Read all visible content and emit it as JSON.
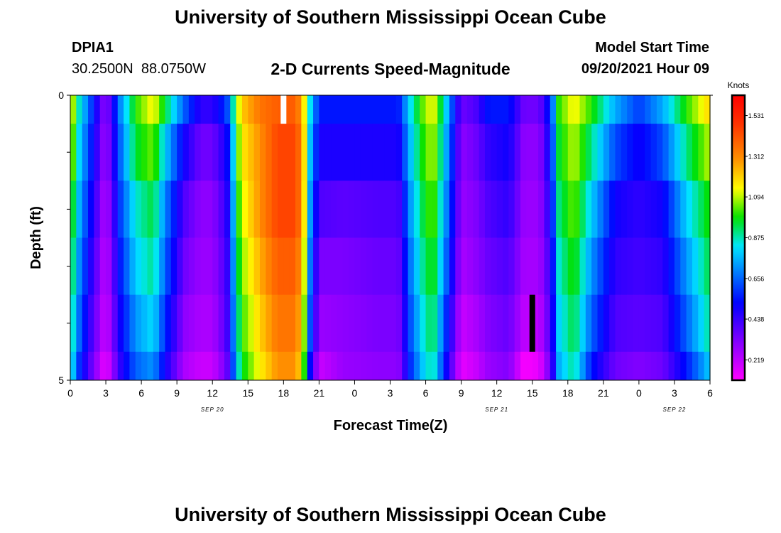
{
  "header": {
    "title": "University of Southern Mississippi Ocean Cube",
    "station_id": "DPIA1",
    "coordinates": "30.2500N  88.0750W",
    "product": "2-D Currents Speed-Magnitude",
    "model_start_label": "Model Start Time",
    "model_start_value": "09/20/2021 Hour 09"
  },
  "footer": {
    "title": "University of Southern Mississippi Ocean Cube"
  },
  "chart_data": {
    "type": "heatmap",
    "title": "2-D Currents Speed-Magnitude",
    "xlabel": "Forecast Time(Z)",
    "ylabel": "Depth (ft)",
    "x_hours_since_sep20_00z": [
      0,
      54
    ],
    "ylim": [
      0,
      5
    ],
    "y_ticks": [
      "0",
      "5"
    ],
    "x_tick_labels": [
      "0",
      "3",
      "6",
      "9",
      "12",
      "15",
      "18",
      "21",
      "0",
      "3",
      "6",
      "9",
      "12",
      "15",
      "18",
      "21",
      "0",
      "3",
      "6"
    ],
    "date_labels": [
      {
        "text": "SEP 20",
        "hour": 12
      },
      {
        "text": "SEP 21",
        "hour": 36
      },
      {
        "text": "SEP 22",
        "hour": 51
      }
    ],
    "colorbar": {
      "title": "Knots",
      "range": [
        0.11,
        1.64
      ],
      "tick_values": [
        0.219,
        0.438,
        0.656,
        0.875,
        1.094,
        1.312,
        1.531
      ],
      "tick_labels": [
        "0.219",
        "0.438",
        "0.656",
        "0.875",
        "1.094",
        "1.312",
        "1.531"
      ]
    },
    "markers": [
      {
        "name": "white-marker",
        "hour": 18,
        "depth_row": 0,
        "color": "#ffffff"
      },
      {
        "name": "black-marker",
        "hour": 39,
        "depth_row": 4,
        "color": "#000000"
      }
    ],
    "time_keyframes_hours": [
      0,
      0.6,
      1.6,
      3,
      4.2,
      5.5,
      7,
      8,
      9.6,
      11,
      12,
      13.2,
      14.4,
      16,
      17.5,
      19,
      19.6,
      20.2,
      21,
      23,
      26,
      27.7,
      28.8,
      29.8,
      30.6,
      31.6,
      33,
      34.2,
      35.3,
      37,
      38.3,
      39.6,
      40.6,
      41.2,
      42.5,
      44,
      46,
      48,
      50,
      52,
      54
    ],
    "depth_rows": [
      {
        "depth_ft": "0-0.5",
        "speed_knots": [
          1.2,
          0.9,
          0.65,
          0.27,
          0.7,
          1.0,
          1.15,
          0.95,
          0.65,
          0.45,
          0.45,
          0.6,
          1.2,
          1.35,
          1.4,
          1.4,
          1.25,
          0.85,
          0.55,
          0.55,
          0.55,
          0.55,
          0.85,
          1.05,
          1.15,
          0.85,
          0.35,
          0.4,
          0.55,
          0.55,
          0.35,
          0.35,
          0.6,
          1.0,
          1.15,
          1.0,
          0.75,
          0.6,
          0.75,
          1.0,
          1.2
        ]
      },
      {
        "depth_ft": "0.5-1.5",
        "speed_knots": [
          1.15,
          0.85,
          0.6,
          0.25,
          0.65,
          0.95,
          1.05,
          0.8,
          0.5,
          0.35,
          0.35,
          0.5,
          1.15,
          1.3,
          1.45,
          1.45,
          1.3,
          0.8,
          0.48,
          0.48,
          0.48,
          0.48,
          0.8,
          1.0,
          1.1,
          0.8,
          0.3,
          0.35,
          0.45,
          0.5,
          0.3,
          0.3,
          0.55,
          0.95,
          1.1,
          0.9,
          0.62,
          0.5,
          0.62,
          0.9,
          1.1
        ]
      },
      {
        "depth_ft": "1.5-2.5",
        "speed_knots": [
          1.05,
          0.8,
          0.55,
          0.22,
          0.6,
          0.85,
          0.95,
          0.7,
          0.4,
          0.3,
          0.3,
          0.45,
          1.1,
          1.3,
          1.45,
          1.45,
          1.3,
          0.75,
          0.4,
          0.38,
          0.4,
          0.4,
          0.75,
          0.95,
          1.05,
          0.75,
          0.28,
          0.32,
          0.4,
          0.45,
          0.28,
          0.28,
          0.5,
          0.9,
          1.05,
          0.8,
          0.5,
          0.45,
          0.5,
          0.8,
          1.0
        ]
      },
      {
        "depth_ft": "2.5-3.5",
        "speed_knots": [
          1.0,
          0.75,
          0.5,
          0.2,
          0.55,
          0.8,
          0.9,
          0.65,
          0.35,
          0.28,
          0.28,
          0.42,
          1.05,
          1.25,
          1.4,
          1.4,
          1.25,
          0.7,
          0.33,
          0.33,
          0.36,
          0.36,
          0.7,
          0.9,
          1.0,
          0.7,
          0.25,
          0.3,
          0.36,
          0.4,
          0.26,
          0.26,
          0.45,
          0.85,
          1.0,
          0.72,
          0.45,
          0.42,
          0.45,
          0.72,
          0.95
        ]
      },
      {
        "depth_ft": "3.5-4.5",
        "speed_knots": [
          0.95,
          0.7,
          0.45,
          0.18,
          0.5,
          0.72,
          0.82,
          0.58,
          0.3,
          0.25,
          0.25,
          0.4,
          1.0,
          1.2,
          1.35,
          1.35,
          1.2,
          0.65,
          0.28,
          0.3,
          0.33,
          0.33,
          0.65,
          0.85,
          0.95,
          0.62,
          0.2,
          0.25,
          0.32,
          0.36,
          0.22,
          0.22,
          0.42,
          0.8,
          0.95,
          0.65,
          0.4,
          0.38,
          0.4,
          0.65,
          0.9
        ]
      },
      {
        "depth_ft": "4.5-5",
        "speed_knots": [
          0.9,
          0.62,
          0.4,
          0.13,
          0.45,
          0.65,
          0.72,
          0.5,
          0.25,
          0.2,
          0.2,
          0.35,
          0.95,
          1.15,
          1.3,
          1.3,
          1.15,
          0.55,
          0.2,
          0.28,
          0.3,
          0.3,
          0.6,
          0.8,
          0.9,
          0.55,
          0.15,
          0.2,
          0.28,
          0.32,
          0.12,
          0.15,
          0.38,
          0.75,
          0.9,
          0.55,
          0.35,
          0.32,
          0.35,
          0.55,
          0.8
        ]
      }
    ]
  }
}
